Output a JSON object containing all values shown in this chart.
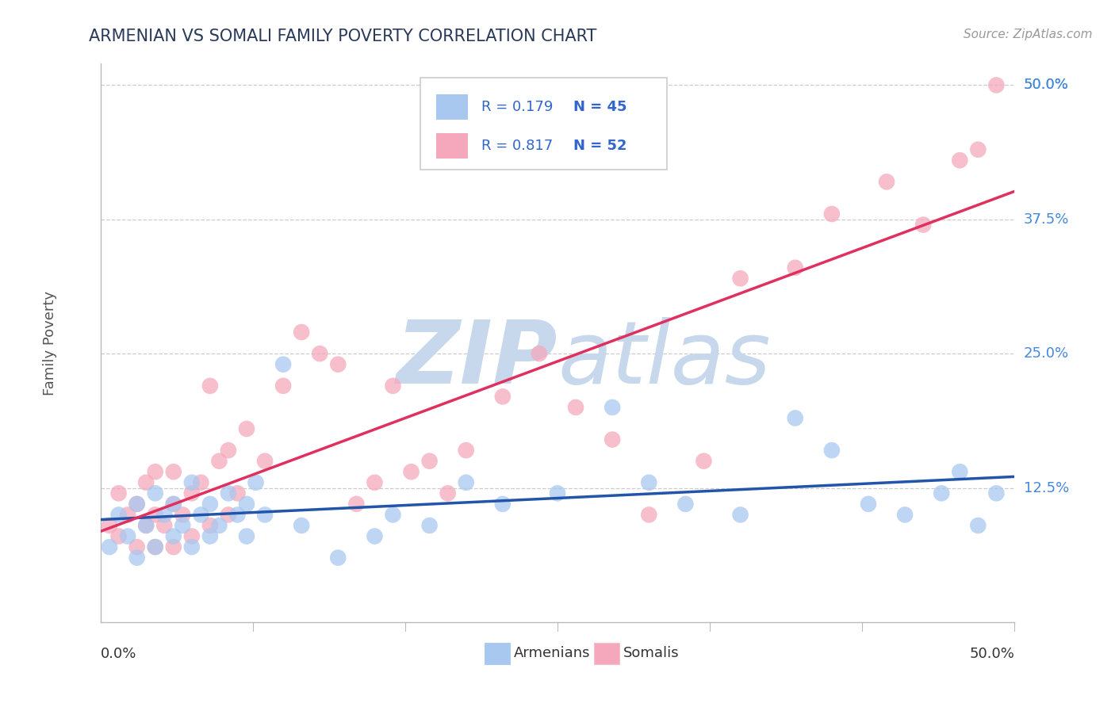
{
  "title": "ARMENIAN VS SOMALI FAMILY POVERTY CORRELATION CHART",
  "source": "Source: ZipAtlas.com",
  "ylabel": "Family Poverty",
  "ytick_labels": [
    "12.5%",
    "25.0%",
    "37.5%",
    "50.0%"
  ],
  "ytick_values": [
    0.125,
    0.25,
    0.375,
    0.5
  ],
  "xlim": [
    0.0,
    0.5
  ],
  "ylim": [
    0.0,
    0.52
  ],
  "legend_label_armenian": "Armenians",
  "legend_label_somali": "Somalis",
  "color_armenian": "#a8c8f0",
  "color_somali": "#f5a8bc",
  "line_color_armenian": "#2255aa",
  "line_color_somali": "#e03060",
  "title_color": "#2a3a5a",
  "source_color": "#999999",
  "R_armenian": 0.179,
  "N_armenian": 45,
  "R_somali": 0.817,
  "N_somali": 52,
  "legend_R_color": "#3366cc",
  "legend_N_color": "#3366cc",
  "armenian_x": [
    0.005,
    0.01,
    0.015,
    0.02,
    0.02,
    0.025,
    0.03,
    0.03,
    0.035,
    0.04,
    0.04,
    0.045,
    0.05,
    0.05,
    0.055,
    0.06,
    0.06,
    0.065,
    0.07,
    0.075,
    0.08,
    0.08,
    0.085,
    0.09,
    0.1,
    0.11,
    0.13,
    0.15,
    0.16,
    0.18,
    0.2,
    0.22,
    0.25,
    0.28,
    0.3,
    0.32,
    0.35,
    0.38,
    0.4,
    0.42,
    0.44,
    0.46,
    0.47,
    0.48,
    0.49
  ],
  "armenian_y": [
    0.07,
    0.1,
    0.08,
    0.06,
    0.11,
    0.09,
    0.07,
    0.12,
    0.1,
    0.08,
    0.11,
    0.09,
    0.07,
    0.13,
    0.1,
    0.08,
    0.11,
    0.09,
    0.12,
    0.1,
    0.11,
    0.08,
    0.13,
    0.1,
    0.24,
    0.09,
    0.06,
    0.08,
    0.1,
    0.09,
    0.13,
    0.11,
    0.12,
    0.2,
    0.13,
    0.11,
    0.1,
    0.19,
    0.16,
    0.11,
    0.1,
    0.12,
    0.14,
    0.09,
    0.12
  ],
  "somali_x": [
    0.005,
    0.01,
    0.01,
    0.015,
    0.02,
    0.02,
    0.025,
    0.025,
    0.03,
    0.03,
    0.03,
    0.035,
    0.04,
    0.04,
    0.04,
    0.045,
    0.05,
    0.05,
    0.055,
    0.06,
    0.06,
    0.065,
    0.07,
    0.07,
    0.075,
    0.08,
    0.09,
    0.1,
    0.11,
    0.12,
    0.13,
    0.14,
    0.15,
    0.16,
    0.17,
    0.18,
    0.19,
    0.2,
    0.22,
    0.24,
    0.26,
    0.28,
    0.3,
    0.33,
    0.35,
    0.38,
    0.4,
    0.43,
    0.45,
    0.47,
    0.48,
    0.49
  ],
  "somali_y": [
    0.09,
    0.08,
    0.12,
    0.1,
    0.07,
    0.11,
    0.09,
    0.13,
    0.07,
    0.1,
    0.14,
    0.09,
    0.11,
    0.07,
    0.14,
    0.1,
    0.12,
    0.08,
    0.13,
    0.09,
    0.22,
    0.15,
    0.1,
    0.16,
    0.12,
    0.18,
    0.15,
    0.22,
    0.27,
    0.25,
    0.24,
    0.11,
    0.13,
    0.22,
    0.14,
    0.15,
    0.12,
    0.16,
    0.21,
    0.25,
    0.2,
    0.17,
    0.1,
    0.15,
    0.32,
    0.33,
    0.38,
    0.41,
    0.37,
    0.43,
    0.44,
    0.5
  ]
}
